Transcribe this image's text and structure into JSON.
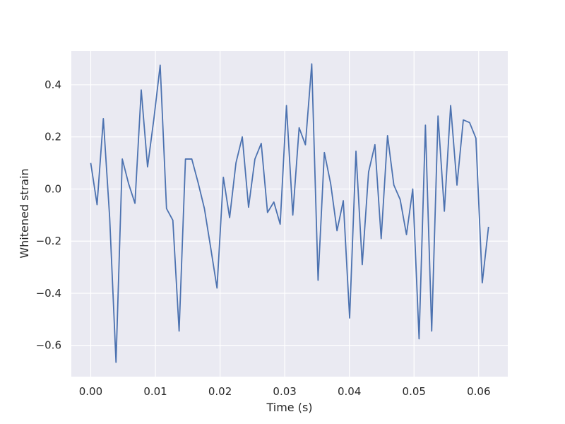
{
  "chart_data": {
    "type": "line",
    "xlabel": "Time (s)",
    "ylabel": "Whitened strain",
    "xlim": [
      -0.003,
      0.0645
    ],
    "ylim": [
      -0.72,
      0.53
    ],
    "grid": true,
    "background": "#eaeaf2",
    "grid_color": "#ffffff",
    "line_color": "#4c72b0",
    "xticks": [
      0.0,
      0.01,
      0.02,
      0.03,
      0.04,
      0.05,
      0.06
    ],
    "xtick_labels": [
      "0.00",
      "0.01",
      "0.02",
      "0.03",
      "0.04",
      "0.05",
      "0.06"
    ],
    "yticks": [
      -0.6,
      -0.4,
      -0.2,
      0.0,
      0.2,
      0.4
    ],
    "ytick_labels": [
      "−0.6",
      "−0.4",
      "−0.2",
      "0.0",
      "0.2",
      "0.4"
    ],
    "series": [
      {
        "x": [
          0.0,
          0.00098,
          0.00195,
          0.00293,
          0.00391,
          0.00488,
          0.00586,
          0.00684,
          0.00781,
          0.00879,
          0.00977,
          0.01074,
          0.01172,
          0.0127,
          0.01367,
          0.01465,
          0.01563,
          0.0166,
          0.01758,
          0.01855,
          0.01953,
          0.02051,
          0.02148,
          0.02246,
          0.02344,
          0.02441,
          0.02539,
          0.02637,
          0.02734,
          0.02832,
          0.0293,
          0.03027,
          0.03125,
          0.03223,
          0.0332,
          0.03418,
          0.03516,
          0.03613,
          0.03711,
          0.03809,
          0.03906,
          0.04004,
          0.04102,
          0.04199,
          0.04297,
          0.04395,
          0.04492,
          0.0459,
          0.04688,
          0.04785,
          0.04883,
          0.0498,
          0.05078,
          0.05176,
          0.05273,
          0.05371,
          0.05469,
          0.05566,
          0.05664,
          0.05762,
          0.05859,
          0.05957,
          0.06055,
          0.06152
        ],
        "y": [
          0.1,
          -0.06,
          0.27,
          -0.11,
          -0.665,
          0.115,
          0.02,
          -0.055,
          0.38,
          0.085,
          0.27,
          0.475,
          -0.075,
          -0.12,
          -0.545,
          0.115,
          0.115,
          0.025,
          -0.075,
          -0.225,
          -0.38,
          0.045,
          -0.11,
          0.1,
          0.2,
          -0.07,
          0.115,
          0.175,
          -0.09,
          -0.05,
          -0.135,
          0.32,
          -0.1,
          0.235,
          0.17,
          0.48,
          -0.35,
          0.14,
          0.02,
          -0.16,
          -0.045,
          -0.495,
          0.145,
          -0.29,
          0.065,
          0.17,
          -0.19,
          0.205,
          0.015,
          -0.04,
          -0.175,
          0.0,
          -0.575,
          0.245,
          -0.545,
          0.28,
          -0.085,
          0.32,
          0.015,
          0.265,
          0.255,
          0.195,
          -0.36,
          -0.145
        ]
      }
    ]
  }
}
